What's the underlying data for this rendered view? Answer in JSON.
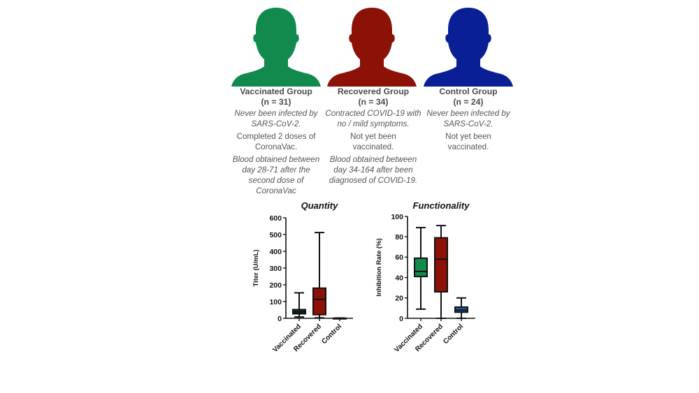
{
  "colors": {
    "vaccinated": "#128a4e",
    "recovered": "#8c1107",
    "control": "#0a1f96",
    "control_box": "#1e5aa0",
    "vaccinated_box_quantity": "#16331f",
    "text_gray": "#555555"
  },
  "groups": [
    {
      "title": "Vaccinated Group",
      "n": "(n = 31)",
      "icon": "person-silhouette-icon",
      "color": "#128a4e",
      "lines": [
        {
          "text": "Never been infected by SARS-CoV-2.",
          "style": "italic"
        },
        {
          "text": "Completed 2 doses of CoronaVac.",
          "style": "normal"
        },
        {
          "text": "Blood obtained between day 28-71 after the second dose of CoronaVac",
          "style": "italic"
        }
      ]
    },
    {
      "title": "Recovered Group",
      "n": "(n = 34)",
      "icon": "person-silhouette-icon",
      "color": "#8c1107",
      "lines": [
        {
          "text": "Contracted COVID-19 with no / mild symptoms.",
          "style": "italic"
        },
        {
          "text": "Not yet been vaccinated.",
          "style": "normal"
        },
        {
          "text": "Blood obtained between day 34-164 after been diagnosed of COVID-19.",
          "style": "italic"
        }
      ]
    },
    {
      "title": "Control Group",
      "n": "(n = 24)",
      "icon": "person-silhouette-icon",
      "color": "#0a1f96",
      "lines": [
        {
          "text": "Never been infected by SARS-CoV-2.",
          "style": "italic"
        },
        {
          "text": "Not yet been vaccinated.",
          "style": "normal"
        }
      ]
    }
  ],
  "chart_data": [
    {
      "type": "box",
      "title": "Quantity",
      "xlabel": "",
      "ylabel": "Titer (U/mL)",
      "ylim": [
        0,
        600
      ],
      "yticks": [
        0,
        100,
        200,
        300,
        400,
        500,
        600
      ],
      "grid": false,
      "categories": [
        "Vaccinated",
        "Recovered",
        "Control"
      ],
      "series": [
        {
          "name": "Vaccinated",
          "min": 8,
          "q1": 27,
          "median": 38,
          "q3": 52,
          "max": 152,
          "color": "#16331f"
        },
        {
          "name": "Recovered",
          "min": 3,
          "q1": 22,
          "median": 113,
          "q3": 180,
          "max": 512,
          "color": "#8c1107"
        },
        {
          "name": "Control",
          "min": 0,
          "q1": 0,
          "median": 0,
          "q3": 1,
          "max": 2,
          "color": "#1e5aa0"
        }
      ]
    },
    {
      "type": "box",
      "title": "Functionality",
      "xlabel": "",
      "ylabel": "Inhibition Rate (%)",
      "ylim": [
        0,
        100
      ],
      "yticks": [
        0,
        20,
        40,
        60,
        80,
        100
      ],
      "grid": false,
      "categories": [
        "Vaccinated",
        "Recovered",
        "Control"
      ],
      "series": [
        {
          "name": "Vaccinated",
          "min": 9,
          "q1": 41,
          "median": 46,
          "q3": 59,
          "max": 89,
          "color": "#128a4e"
        },
        {
          "name": "Recovered",
          "min": 0,
          "q1": 26,
          "median": 58,
          "q3": 79,
          "max": 91,
          "color": "#8c1107"
        },
        {
          "name": "Control",
          "min": 0,
          "q1": 6,
          "median": 8,
          "q3": 11,
          "max": 20,
          "color": "#1e5aa0"
        }
      ]
    }
  ]
}
